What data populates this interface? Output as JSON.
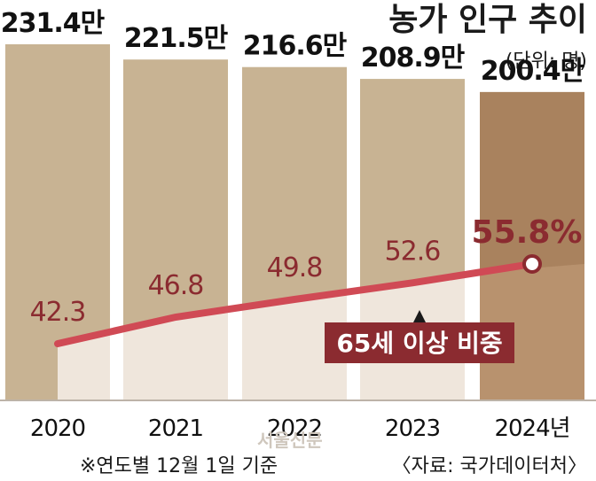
{
  "header": {
    "title": "농가 인구 추이",
    "unit": "(단위: 명)"
  },
  "chart_data": {
    "type": "bar",
    "title": "농가 인구 추이",
    "categories": [
      "2020",
      "2021",
      "2022",
      "2023",
      "2024년"
    ],
    "series": [
      {
        "values": [
          2314000,
          2215000,
          2166000,
          2089000,
          2004000
        ],
        "labels": [
          "231.4만",
          "221.5만",
          "216.6만",
          "208.9만",
          "200.4만"
        ]
      },
      {
        "name": "65세 이상 비중",
        "type": "line",
        "values": [
          42.3,
          46.8,
          49.8,
          52.6,
          55.8
        ],
        "labels": [
          "42.3",
          "46.8",
          "49.8",
          "52.6",
          "55.8%"
        ]
      }
    ],
    "colors": {
      "bar": "#c8b393",
      "bar_last": "#a9825e",
      "share_fill": "#efe6dc",
      "share_fill_last": "#b8926e",
      "line": "#d04a55",
      "label_bg": "#8b2b30",
      "label_text": "#8b2b30"
    },
    "line_label": "65세 이상 비중"
  },
  "footer": {
    "note": "※연도별 12월 1일 기준",
    "source": "〈자료: 국가데이터처〉",
    "watermark": "서울신문"
  }
}
